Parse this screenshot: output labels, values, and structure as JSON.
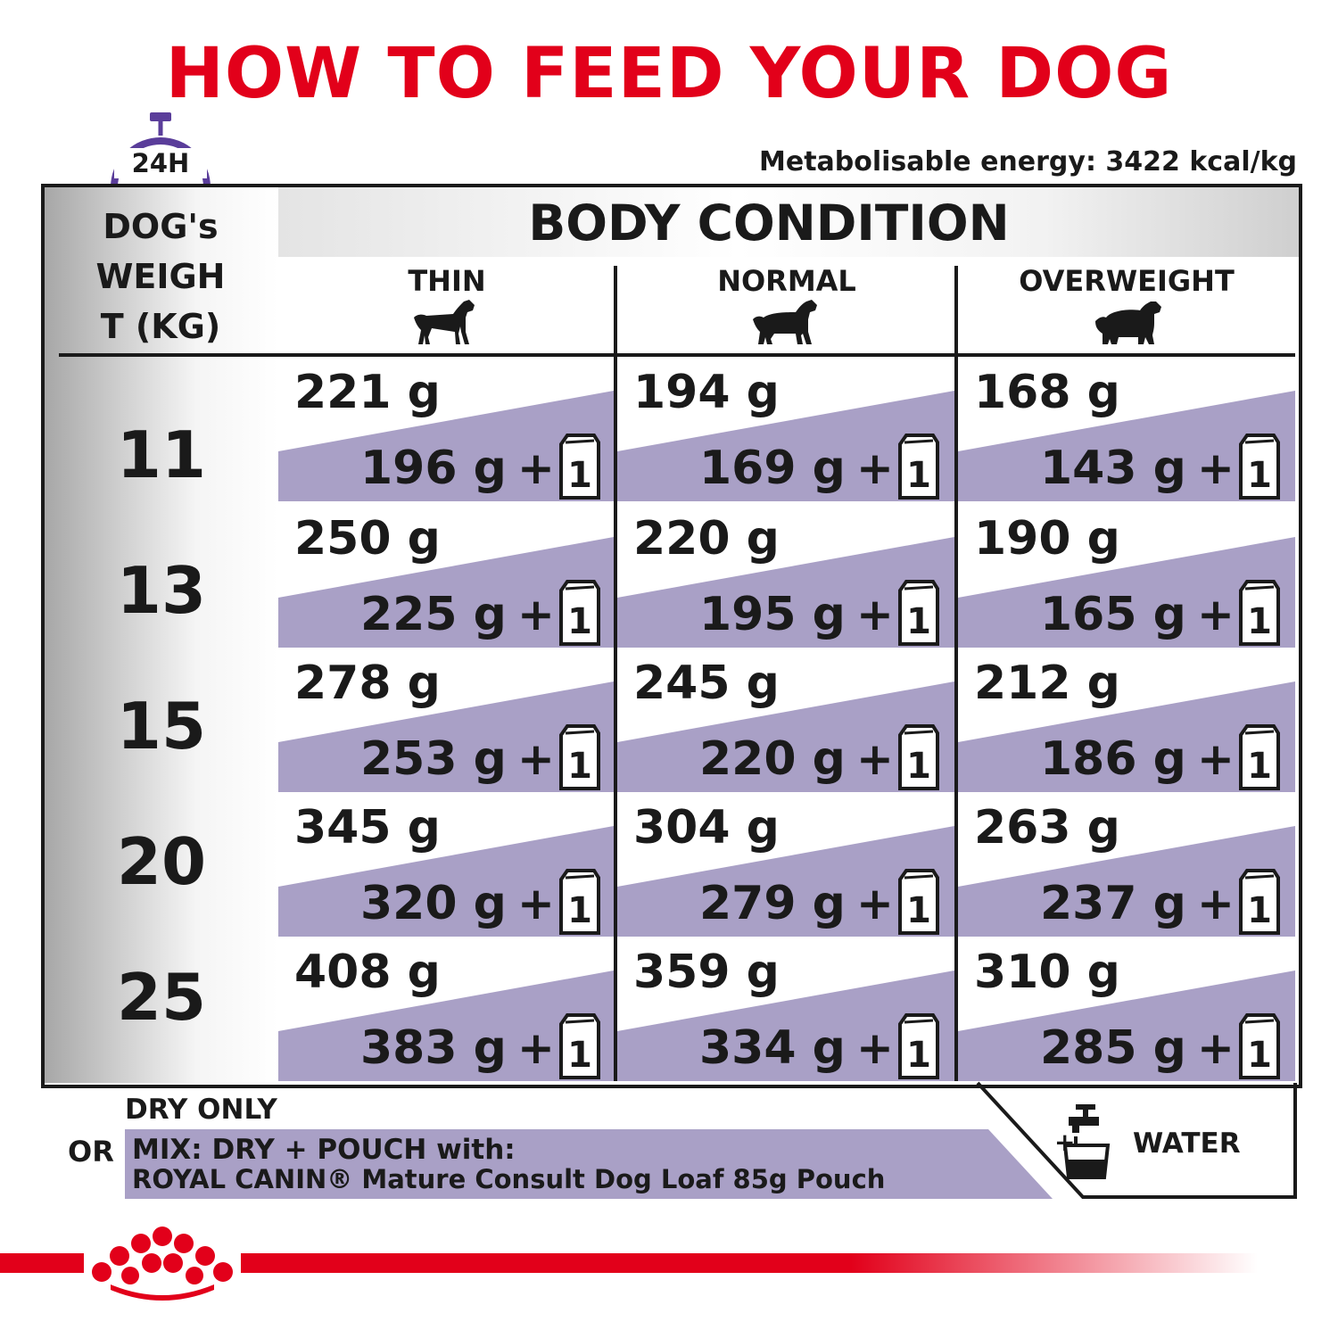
{
  "title": "HOW TO FEED YOUR DOG",
  "clock_label": "24H",
  "energy": "Metabolisable energy: 3422 kcal/kg",
  "weight_header": [
    "DOG's",
    "WEIGH",
    "T (KG)"
  ],
  "body_condition": "BODY CONDITION",
  "columns": [
    "THIN",
    "NORMAL",
    "OVERWEIGHT"
  ],
  "rows": [
    {
      "weight": "11",
      "cells": [
        {
          "dry": "221 g",
          "mix": "196 g"
        },
        {
          "dry": "194 g",
          "mix": "169 g"
        },
        {
          "dry": "168 g",
          "mix": "143 g"
        }
      ]
    },
    {
      "weight": "13",
      "cells": [
        {
          "dry": "250 g",
          "mix": "225 g"
        },
        {
          "dry": "220 g",
          "mix": "195 g"
        },
        {
          "dry": "190 g",
          "mix": "165 g"
        }
      ]
    },
    {
      "weight": "15",
      "cells": [
        {
          "dry": "278 g",
          "mix": "253 g"
        },
        {
          "dry": "245 g",
          "mix": "220 g"
        },
        {
          "dry": "212 g",
          "mix": "186 g"
        }
      ]
    },
    {
      "weight": "20",
      "cells": [
        {
          "dry": "345 g",
          "mix": "320 g"
        },
        {
          "dry": "304 g",
          "mix": "279 g"
        },
        {
          "dry": "263 g",
          "mix": "237 g"
        }
      ]
    },
    {
      "weight": "25",
      "cells": [
        {
          "dry": "408 g",
          "mix": "383 g"
        },
        {
          "dry": "359 g",
          "mix": "334 g"
        },
        {
          "dry": "310 g",
          "mix": "285 g"
        }
      ]
    }
  ],
  "plus_sign": "+",
  "pouch_count": "1",
  "legend": {
    "dry_only": "DRY ONLY",
    "or": "OR",
    "mix_line1": "MIX: DRY + POUCH with:",
    "mix_line2": "ROYAL CANIN® Mature Consult Dog Loaf 85g Pouch",
    "water_plus": "+",
    "water": "WATER"
  },
  "colors": {
    "brand_red": "#e2001a",
    "band_purple": "#a9a0c6",
    "clock_purple": "#5a3d9a",
    "text_dark": "#1a1a1a"
  },
  "icons": [
    "clock-icon",
    "dog-thin-icon",
    "dog-normal-icon",
    "dog-overweight-icon",
    "pouch-icon",
    "tap-water-icon",
    "crown-logo-icon"
  ]
}
